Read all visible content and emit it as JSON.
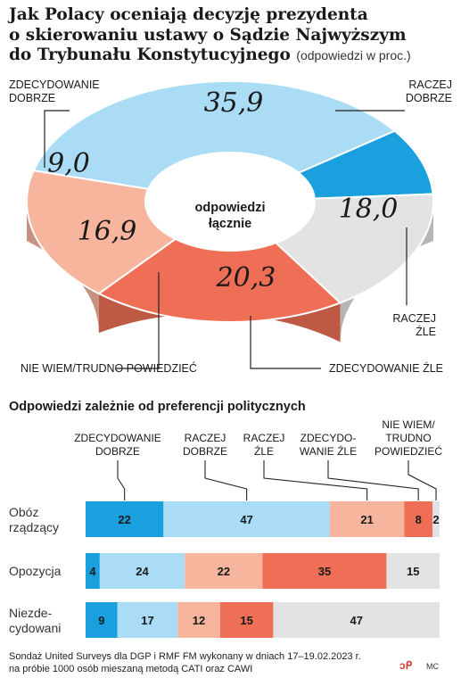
{
  "title_lines": [
    "Jak Polacy oceniają decyzję prezydenta",
    "o skierowaniu ustawy o Sądzie Najwyższym",
    "do Trybunału Konstytucyjnego"
  ],
  "title_suffix": "(odpowiedzi w proc.)",
  "center_label_lines": [
    "odpowiedzi",
    "łącznie"
  ],
  "colors": {
    "zdecydowanie_dobrze": "#1aa0de",
    "raczej_dobrze": "#aadcf6",
    "raczej_zle": "#f8b59d",
    "zdecydowanie_zle": "#ee6f55",
    "nie_wiem": "#e3e3e3"
  },
  "chart_data": [
    {
      "type": "pie",
      "donut": true,
      "slices": [
        {
          "key": "zdecydowanie_dobrze",
          "label_lines": [
            "ZDECYDOWANIE",
            "DOBRZE"
          ],
          "value": 9.0,
          "display": "9,0"
        },
        {
          "key": "raczej_dobrze",
          "label_lines": [
            "RACZEJ",
            "DOBRZE"
          ],
          "value": 35.9,
          "display": "35,9"
        },
        {
          "key": "raczej_zle",
          "label_lines": [
            "RACZEJ",
            "ŹLE"
          ],
          "value": 18.0,
          "display": "18,0"
        },
        {
          "key": "zdecydowanie_zle",
          "label_lines": [
            "ZDECYDOWANIE ŹLE"
          ],
          "value": 20.3,
          "display": "20,3"
        },
        {
          "key": "nie_wiem",
          "label_lines": [
            "NIE WIEM/TRUDNO POWIEDZIEĆ"
          ],
          "value": 16.9,
          "display": "16,9"
        }
      ]
    },
    {
      "type": "bar",
      "orientation": "horizontal",
      "stacked": true,
      "title": "Odpowiedzi zależnie od preferencji politycznych",
      "series": [
        {
          "key": "zdecydowanie_dobrze",
          "header_lines": [
            "ZDECYDOWANIE",
            "DOBRZE"
          ]
        },
        {
          "key": "raczej_dobrze",
          "header_lines": [
            "RACZEJ",
            "DOBRZE"
          ]
        },
        {
          "key": "raczej_zle",
          "header_lines": [
            "RACZEJ",
            "ŹLE"
          ]
        },
        {
          "key": "zdecydowanie_zle",
          "header_lines": [
            "ZDECYDO-",
            "WANIE ŹLE"
          ]
        },
        {
          "key": "nie_wiem",
          "header_lines": [
            "NIE WIEM/",
            "TRUDNO",
            "POWIEDZIEĆ"
          ]
        }
      ],
      "rows": [
        {
          "label_lines": [
            "Obóz",
            "rządzący"
          ],
          "values": [
            22,
            47,
            21,
            8,
            2
          ]
        },
        {
          "label_lines": [
            "Opozycja"
          ],
          "values": [
            4,
            24,
            22,
            35,
            15
          ]
        },
        {
          "label_lines": [
            "Niezde-",
            "cydowani"
          ],
          "values": [
            9,
            17,
            12,
            15,
            47
          ]
        }
      ]
    }
  ],
  "footer_lines": [
    "Sondaż United Surveys dla DGP i RMF FM wykonany w dniach 17–19.02.2023 r.",
    "na próbie 1000 osób mieszaną metodą CATI oraz CAWI"
  ],
  "brand_mark": "ↄᑭ",
  "credit": "MC"
}
